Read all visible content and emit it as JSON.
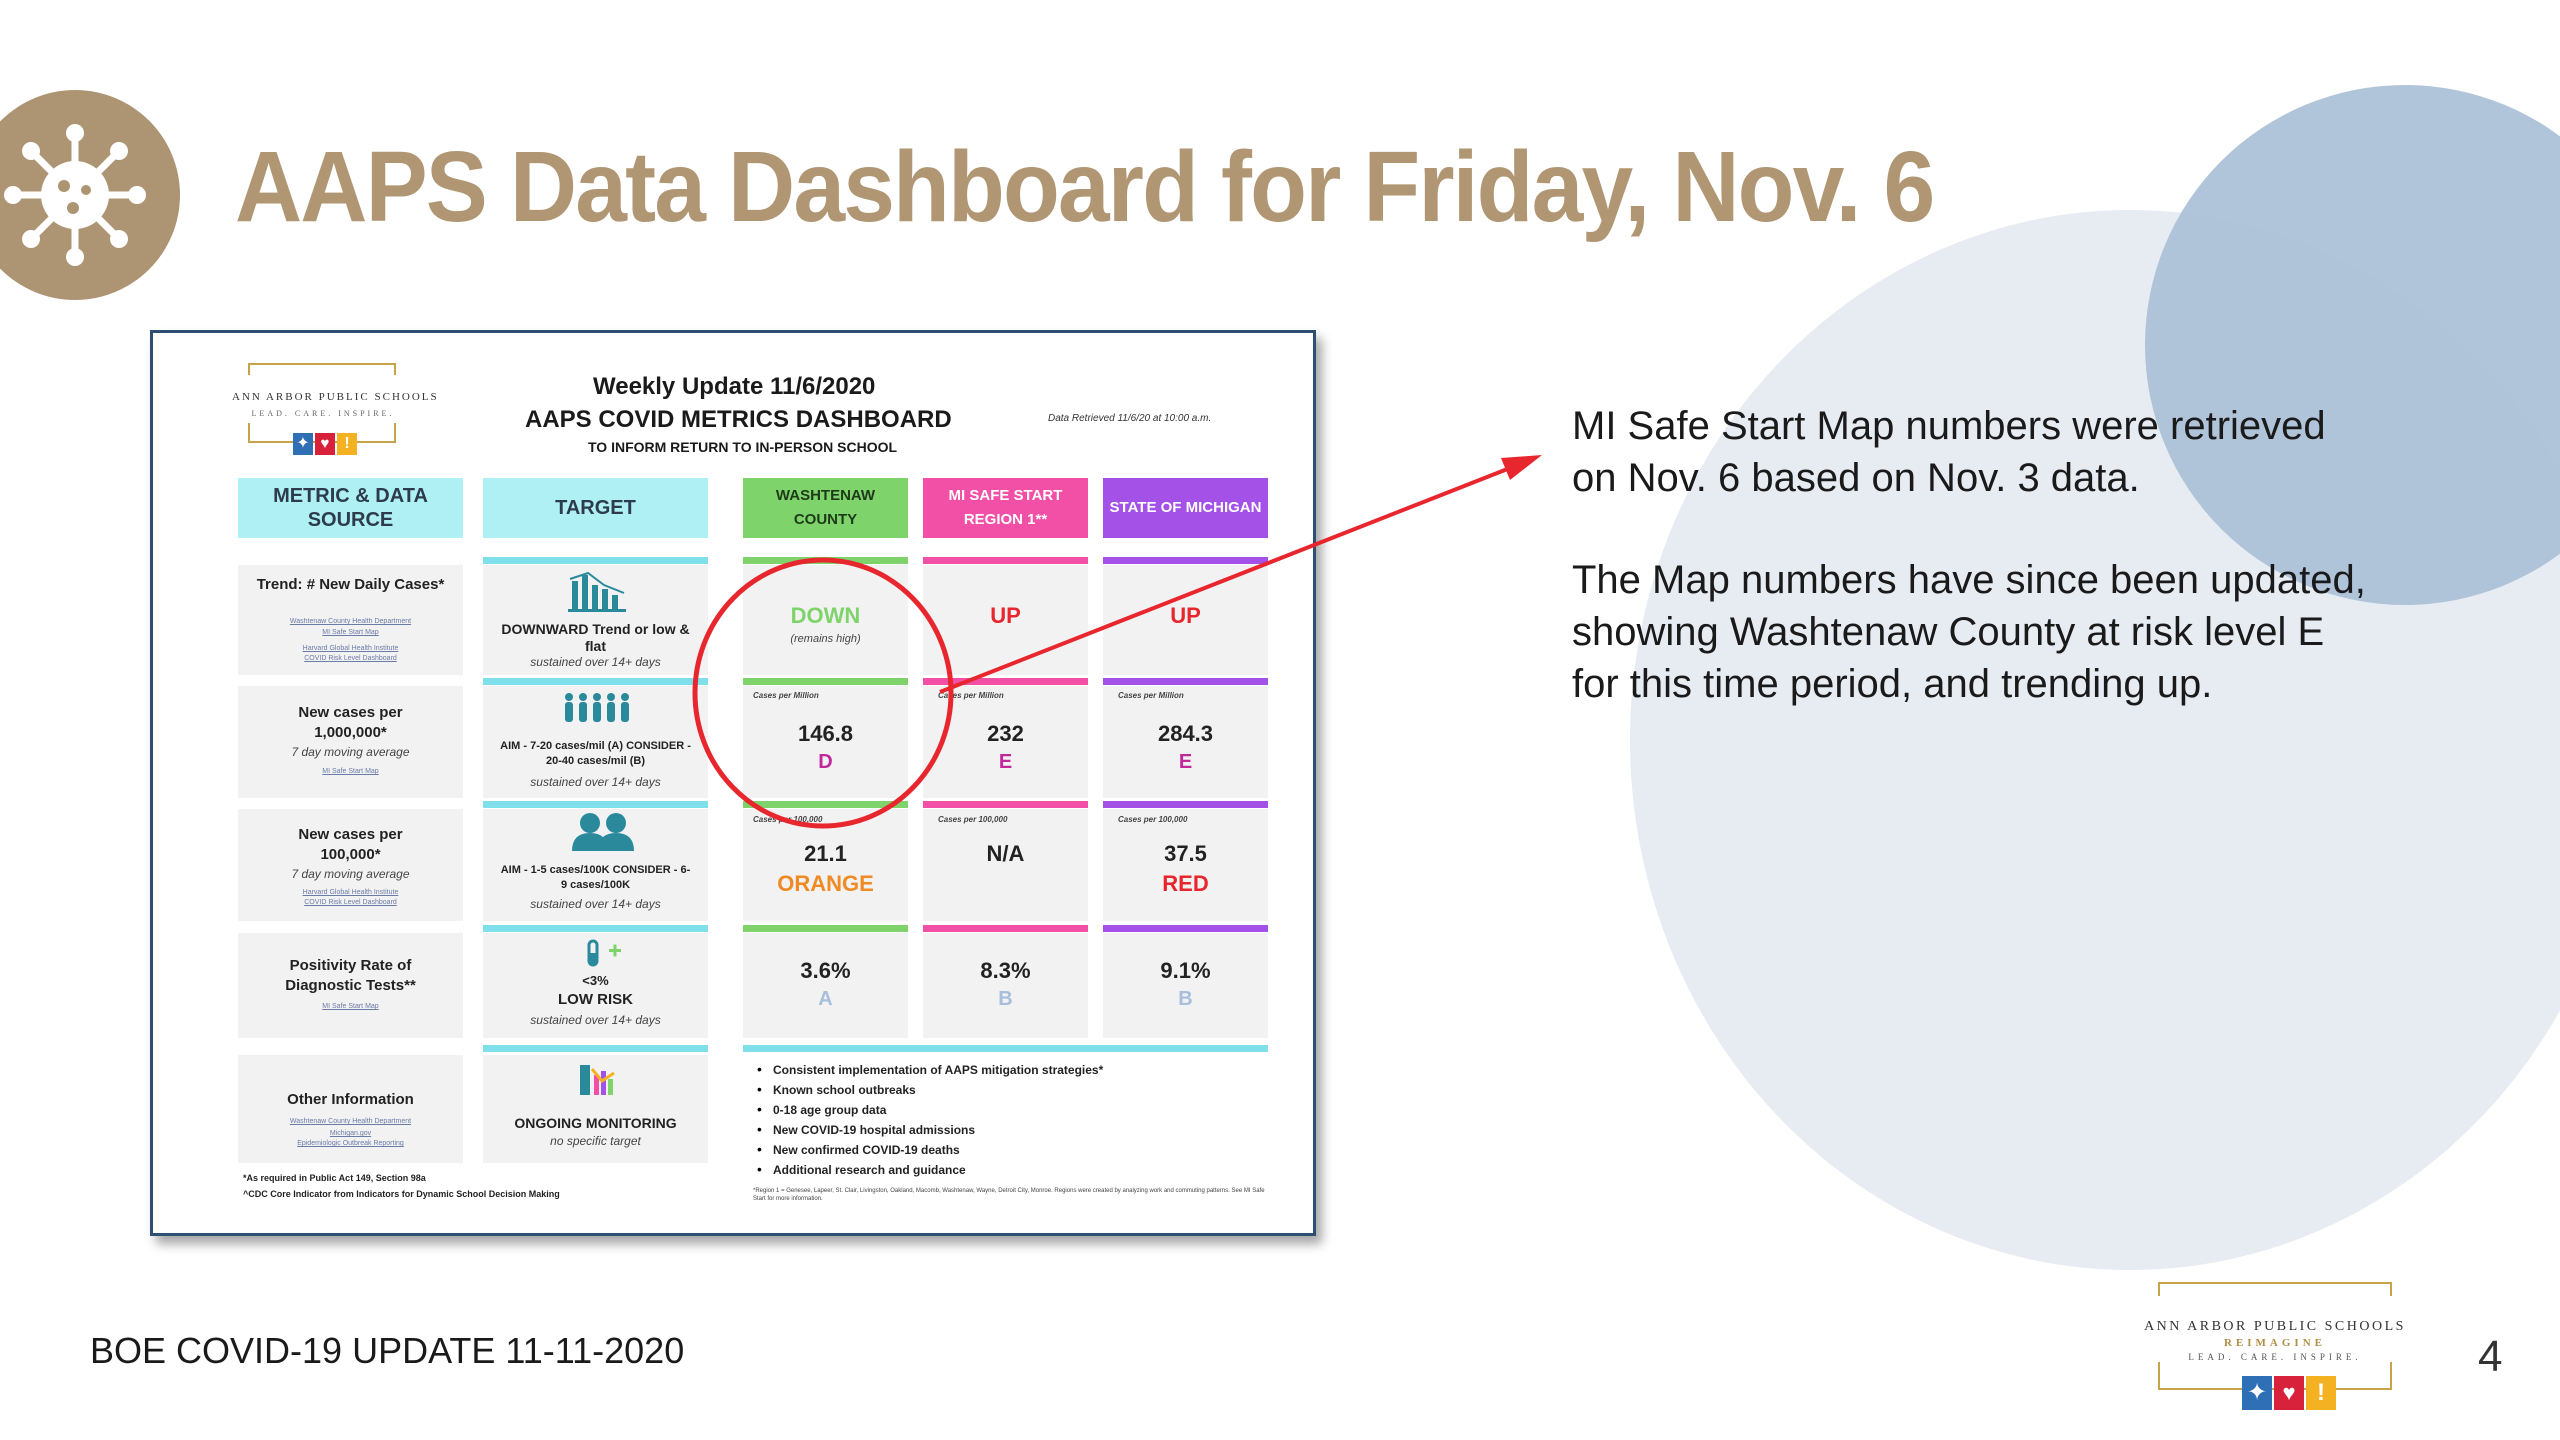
{
  "slide": {
    "title": "AAPS Data Dashboard for Friday, Nov. 6",
    "footer": "BOE COVID-19 UPDATE 11-11-2020",
    "page_number": "4",
    "notes": [
      "MI Safe Start Map numbers were retrieved on Nov. 6 based on Nov. 3 data.",
      "The Map numbers have since been updated, showing Washtenaw County at risk level E for this time period, and trending up."
    ],
    "footer_logo": {
      "name": "ANN ARBOR PUBLIC SCHOOLS",
      "line2": "REIMAGINE",
      "tagline": "LEAD. CARE. INSPIRE."
    }
  },
  "colors": {
    "title": "#b09673",
    "badge": "#ad9472",
    "circle_large": "#e7ecf3",
    "circle_small": "#a9bfd6",
    "annotation": "#e8262e",
    "cyan": "#7fe0ec",
    "green": "#7ed46b",
    "pink": "#f24fa6",
    "purple": "#a451e8",
    "orange": "#f08a24",
    "red": "#e8262e",
    "magenta": "#c1289c",
    "teal_icon": "#2a8a9c"
  },
  "dashboard": {
    "logo": {
      "name": "ANN ARBOR PUBLIC SCHOOLS",
      "tagline": "LEAD. CARE. INSPIRE."
    },
    "weekly_update": "Weekly Update 11/6/2020",
    "title": "AAPS COVID METRICS DASHBOARD",
    "subtitle": "TO INFORM RETURN TO IN-PERSON SCHOOL",
    "retrieved": "Data Retrieved 11/6/20 at 10:00 a.m.",
    "headers": {
      "metric": "METRIC & DATA SOURCE",
      "target": "TARGET",
      "washtenaw": "WASHTENAW COUNTY",
      "mi": "MI SAFE START REGION 1**",
      "state": "STATE OF MICHIGAN"
    },
    "rows": [
      {
        "metric": "Trend: # New Daily Cases*",
        "sources": [
          "Washtenaw County Health Department",
          "MI Safe Start Map",
          "Harvard Global Health Institute",
          "COVID Risk Level Dashboard"
        ],
        "target_main": "DOWNWARD Trend or low & flat",
        "target_note": "sustained over 14+ days",
        "washtenaw": {
          "small": "",
          "value": "DOWN",
          "note": "(remains high)"
        },
        "mi": {
          "small": "",
          "value": "UP"
        },
        "state": {
          "small": "",
          "value": "UP"
        }
      },
      {
        "metric": "New cases per 1,000,000*",
        "metric_note": "7 day moving average",
        "sources": [
          "MI Safe Start Map"
        ],
        "target_main": "AIM - 7-20 cases/mil (A) CONSIDER - 20-40 cases/mil (B)",
        "target_note": "sustained over 14+ days",
        "washtenaw": {
          "small": "Cases per Million",
          "value": "146.8",
          "level": "D"
        },
        "mi": {
          "small": "Cases per Million",
          "value": "232",
          "level": "E"
        },
        "state": {
          "small": "Cases per Million",
          "value": "284.3",
          "level": "E"
        }
      },
      {
        "metric": "New cases per 100,000*",
        "metric_note": "7 day moving average",
        "sources": [
          "Harvard Global Health Institute",
          "COVID Risk Level Dashboard"
        ],
        "target_main": "AIM - 1-5 cases/100K CONSIDER - 6-9 cases/100K",
        "target_note": "sustained over 14+ days",
        "washtenaw": {
          "small": "Cases per 100,000",
          "value": "21.1",
          "level": "ORANGE"
        },
        "mi": {
          "small": "Cases per 100,000",
          "value": "N/A"
        },
        "state": {
          "small": "Cases per 100,000",
          "value": "37.5",
          "level": "RED"
        }
      },
      {
        "metric": "Positivity Rate of Diagnostic Tests**",
        "sources": [
          "MI Safe Start Map"
        ],
        "target_top": "<3%",
        "target_main": "LOW RISK",
        "target_note": "sustained over 14+ days",
        "washtenaw": {
          "value": "3.6%",
          "level": "A"
        },
        "mi": {
          "value": "8.3%",
          "level": "B"
        },
        "state": {
          "value": "9.1%",
          "level": "B"
        }
      },
      {
        "metric": "Other Information",
        "sources": [
          "Washtenaw County Health Department",
          "Michigan.gov",
          "Epidemiologic Outbreak Reporting"
        ],
        "target_main": "ONGOING MONITORING",
        "target_note": "no specific target"
      }
    ],
    "other_info": [
      "Consistent implementation of AAPS mitigation strategies*",
      "Known school outbreaks",
      "0-18 age group data",
      "New COVID-19 hospital admissions",
      "New confirmed COVID-19 deaths",
      "Additional research and guidance"
    ],
    "footnotes": [
      "*As required in Public Act 149, Section 98a",
      "^CDC Core Indicator from Indicators for Dynamic School Decision Making"
    ],
    "region_note": "*Region 1 = Genesee, Lapeer, St. Clair, Livingston, Oakland, Macomb, Washtenaw, Wayne, Detroit City, Monroe. Regions were created by analyzing work and commuting patterns. See MI Safe Start for more information."
  }
}
